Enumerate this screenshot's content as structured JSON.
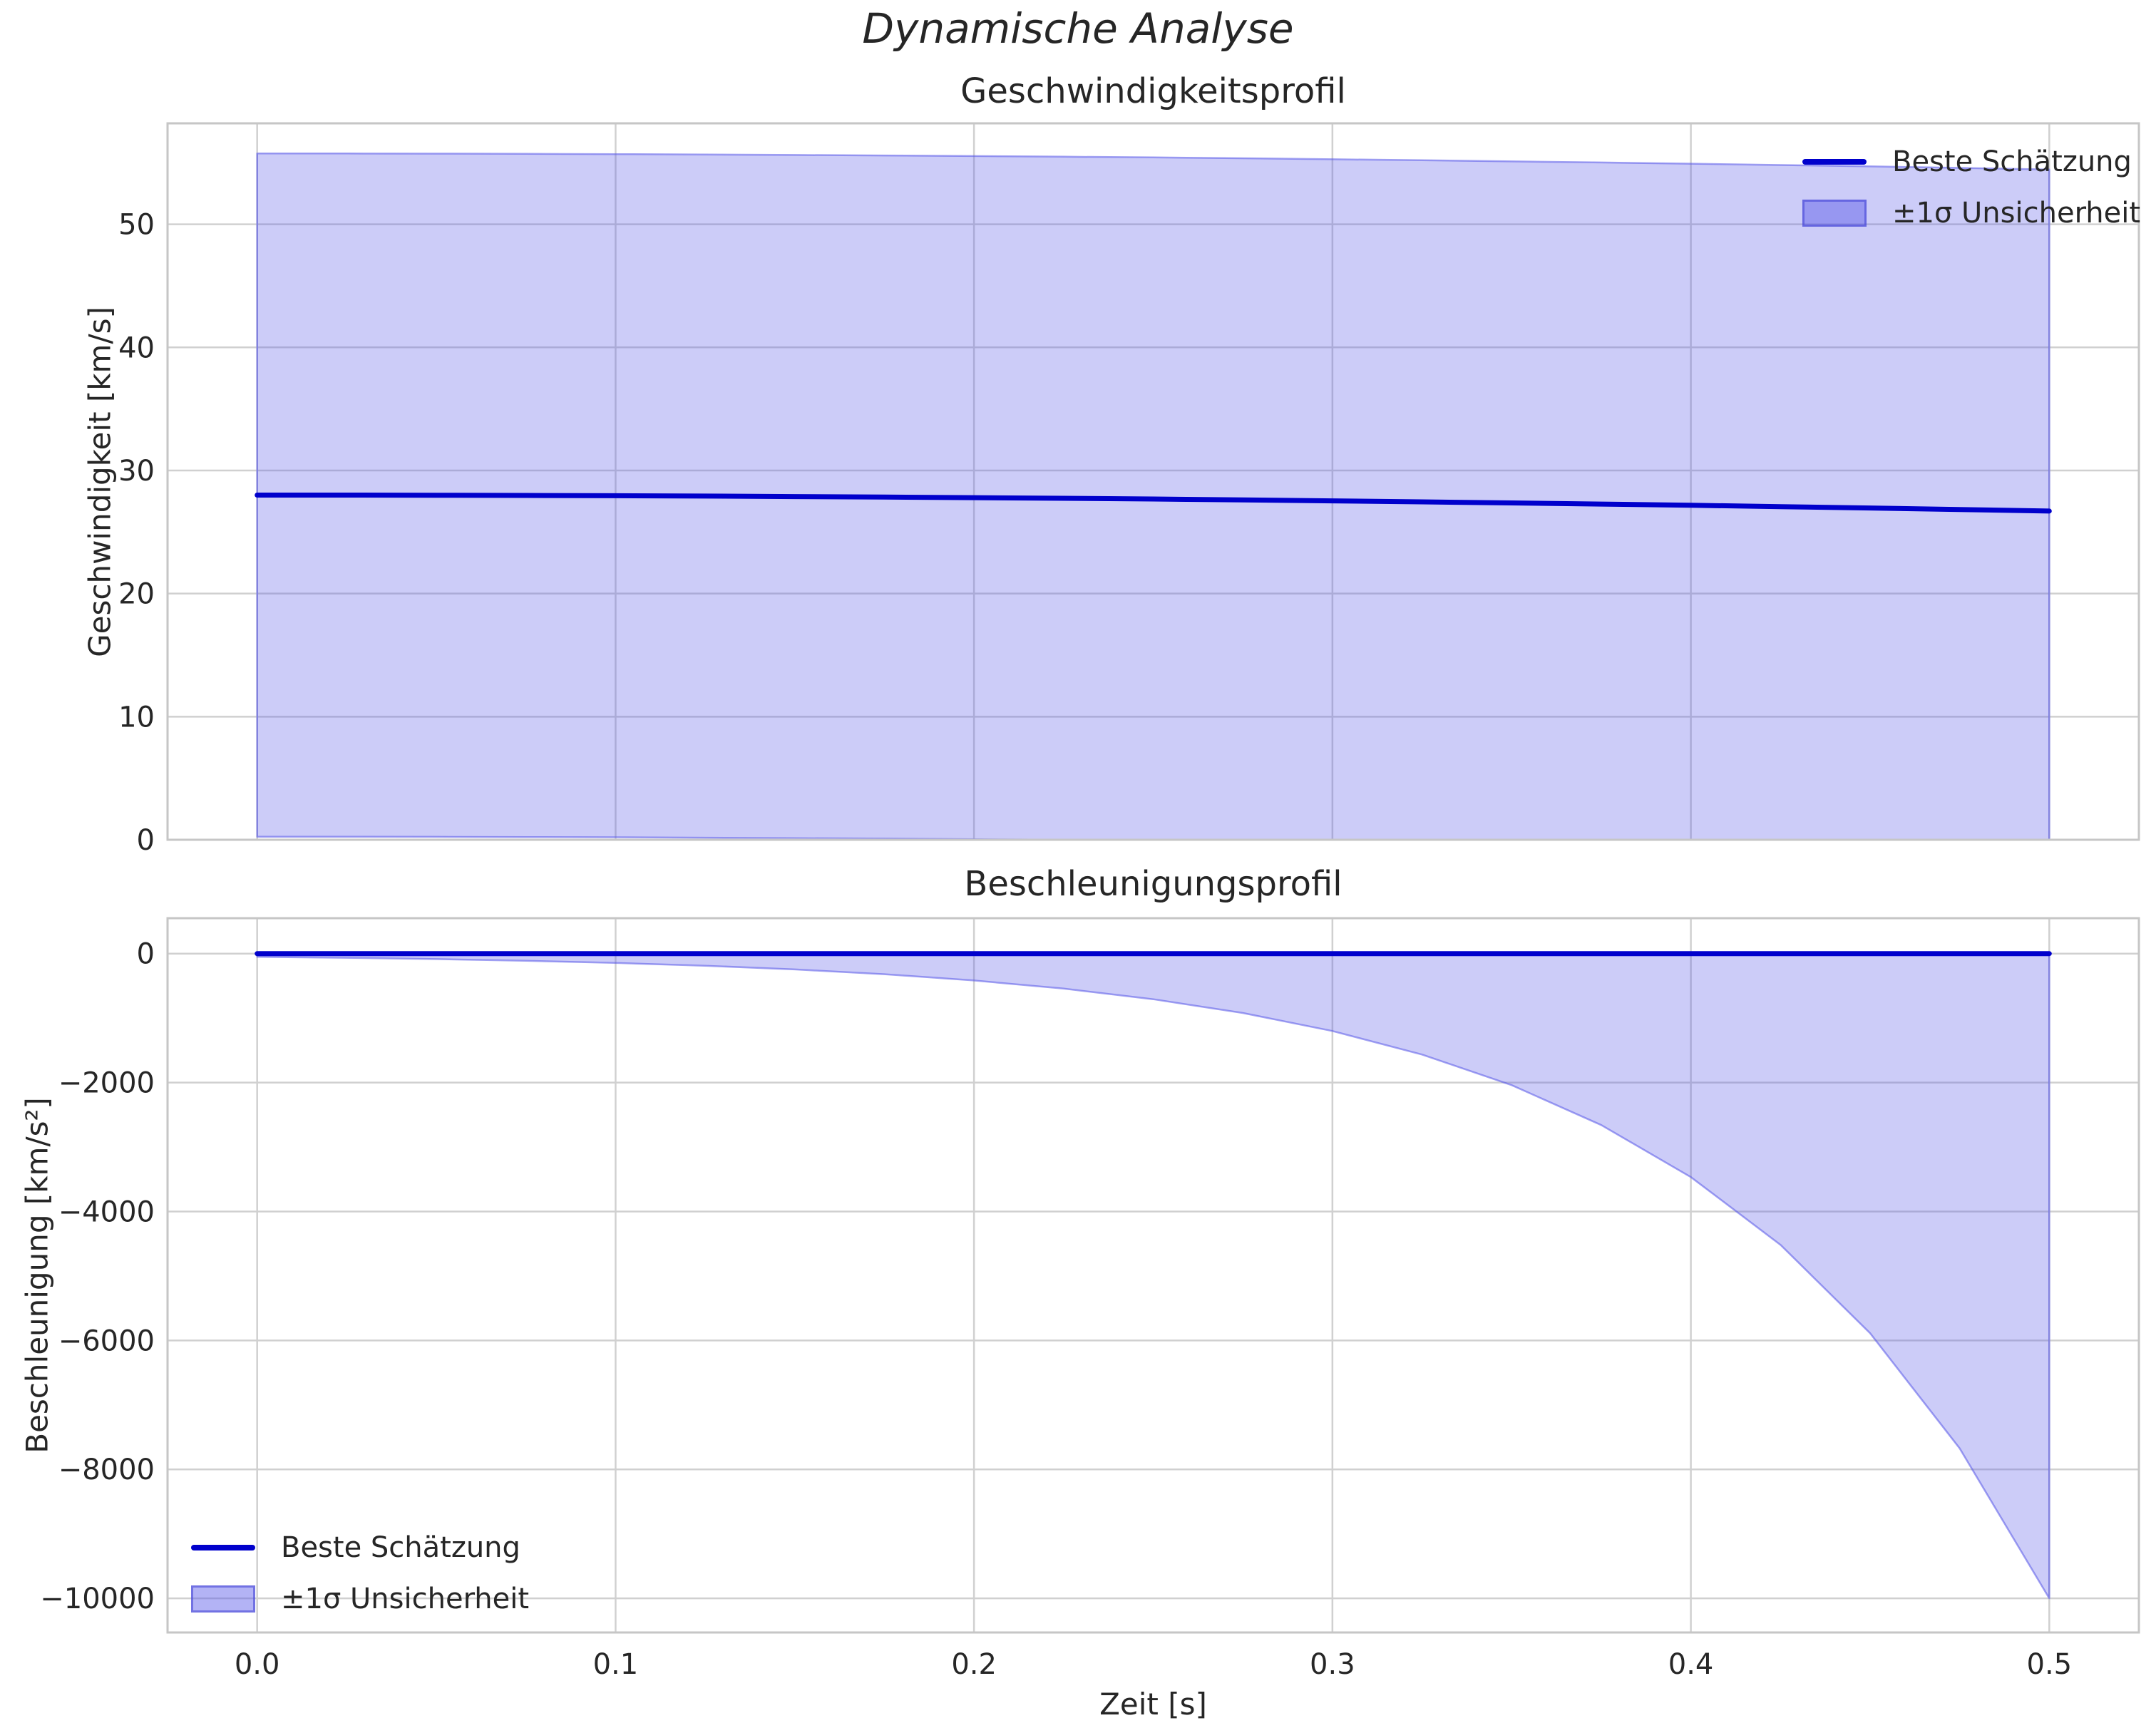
{
  "figure": {
    "suptitle": "Dynamische Analyse",
    "background": "#ffffff",
    "text_color": "#262626",
    "line_color": "#0000cc",
    "band_color": "#5656e8",
    "grid_color": "#d0d0d0",
    "spine_color": "#c6c6c6"
  },
  "chart_data": [
    {
      "type": "line",
      "title": "Geschwindigkeitsprofil",
      "xlabel": "",
      "ylabel": "Geschwindigkeit [km/s]",
      "legend_position": "upper right",
      "grid": true,
      "x": [
        0,
        0.025,
        0.05,
        0.075,
        0.1,
        0.125,
        0.15,
        0.175,
        0.2,
        0.225,
        0.25,
        0.275,
        0.3,
        0.325,
        0.35,
        0.375,
        0.4,
        0.425,
        0.45,
        0.475,
        0.5
      ],
      "series": [
        {
          "name": "Beste Schätzung",
          "values": [
            28.0,
            28.0,
            27.99,
            27.97,
            27.95,
            27.92,
            27.88,
            27.84,
            27.79,
            27.74,
            27.68,
            27.61,
            27.53,
            27.45,
            27.36,
            27.27,
            27.17,
            27.06,
            26.95,
            26.83,
            26.7
          ]
        }
      ],
      "band": {
        "name": "±1σ Unsicherheit",
        "upper": [
          55.75,
          55.75,
          55.74,
          55.72,
          55.7,
          55.67,
          55.63,
          55.59,
          55.54,
          55.49,
          55.43,
          55.36,
          55.28,
          55.2,
          55.11,
          55.02,
          54.92,
          54.81,
          54.7,
          54.58,
          54.45
        ],
        "lower": [
          0.25,
          0.25,
          0.24,
          0.22,
          0.2,
          0.17,
          0.13,
          0.09,
          0.04,
          0,
          0,
          0,
          0,
          0,
          0,
          0,
          0,
          0,
          0,
          0,
          0
        ]
      },
      "xlim": [
        -0.025,
        0.525
      ],
      "ylim": [
        0,
        58.2
      ],
      "xticks": [
        0.0,
        0.1,
        0.2,
        0.3,
        0.4,
        0.5
      ],
      "xtick_labels": [],
      "yticks": [
        0,
        10,
        20,
        30,
        40,
        50
      ],
      "ytick_labels": [
        "0",
        "10",
        "20",
        "30",
        "40",
        "50"
      ]
    },
    {
      "type": "line",
      "title": "Beschleunigungsprofil",
      "xlabel": "Zeit [s]",
      "ylabel": "Beschleunigung [km/s²]",
      "legend_position": "lower left",
      "grid": true,
      "x": [
        0,
        0.025,
        0.05,
        0.075,
        0.1,
        0.125,
        0.15,
        0.175,
        0.2,
        0.225,
        0.25,
        0.275,
        0.3,
        0.325,
        0.35,
        0.375,
        0.4,
        0.425,
        0.45,
        0.475,
        0.5
      ],
      "series": [
        {
          "name": "Beste Schätzung",
          "values": [
            0,
            0,
            0,
            0,
            0,
            0,
            0,
            0,
            0,
            0,
            0,
            0,
            0,
            0,
            0,
            0,
            0,
            0,
            0,
            0,
            0
          ]
        }
      ],
      "band": {
        "name": "±1σ Unsicherheit",
        "upper": [
          0,
          0,
          0,
          0,
          0,
          0,
          0,
          0,
          0,
          0,
          0,
          0,
          0,
          0,
          0,
          0,
          0,
          0,
          0,
          0,
          0
        ],
        "lower": [
          -50,
          -65,
          -85,
          -111,
          -144,
          -188,
          -245,
          -319,
          -416,
          -542,
          -707,
          -921,
          -1201,
          -1565,
          -2040,
          -2659,
          -3466,
          -4517,
          -5888,
          -7674,
          -10000
        ]
      },
      "xlim": [
        -0.025,
        0.525
      ],
      "ylim": [
        -10530,
        550
      ],
      "xticks": [
        0.0,
        0.1,
        0.2,
        0.3,
        0.4,
        0.5
      ],
      "xtick_labels": [
        "0.0",
        "0.1",
        "0.2",
        "0.3",
        "0.4",
        "0.5"
      ],
      "yticks": [
        0,
        -2000,
        -4000,
        -6000,
        -8000,
        -10000
      ],
      "ytick_labels": [
        "0",
        "−2000",
        "−4000",
        "−6000",
        "−8000",
        "−10000"
      ]
    }
  ]
}
